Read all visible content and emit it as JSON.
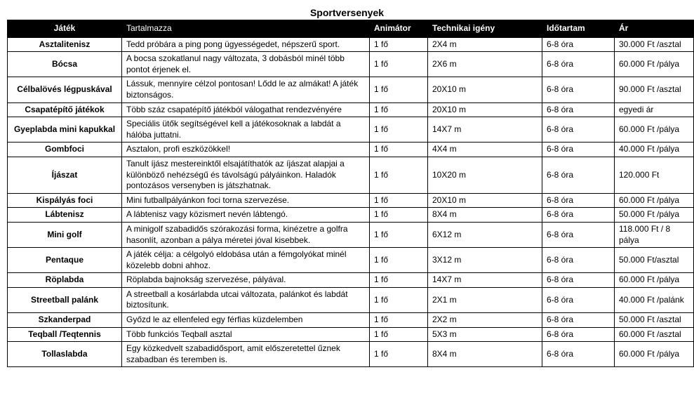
{
  "title": "Sportversenyek",
  "columns": [
    "Játék",
    "Tartalmazza",
    "Animátor",
    "Technikai igény",
    "Időtartam",
    "Ár"
  ],
  "rows": [
    {
      "game": "Asztalitenisz",
      "desc": "Tedd próbára a ping pong ügyességedet, népszerű sport.",
      "anim": "1 fő",
      "tech": "2X4 m",
      "dur": "6-8 óra",
      "price": "30.000 Ft /asztal"
    },
    {
      "game": "Bócsa",
      "desc": "A bocsa szokatlanul nagy változata,  3 dobásból minél több pontot érjenek el.",
      "anim": "1 fő",
      "tech": "2X6 m",
      "dur": "6-8 óra",
      "price": "60.000 Ft /pálya"
    },
    {
      "game": "Célbalövés légpuskával",
      "desc": "Lássuk, mennyire célzol pontosan! Lődd le az almákat!  A játék biztonságos.",
      "anim": "1 fő",
      "tech": "20X10 m",
      "dur": "6-8 óra",
      "price": "90.000 Ft /asztal"
    },
    {
      "game": "Csapatépítő játékok",
      "desc": "Több száz csapatépítő játékból válogathat rendezvényére",
      "anim": "1 fő",
      "tech": "20X10 m",
      "dur": "6-8 óra",
      "price": "egyedi ár"
    },
    {
      "game": "Gyeplabda mini kapukkal",
      "desc": "Speciális ütők segítségével kell a játékosoknak a labdát a hálóba juttatni.",
      "anim": "1 fő",
      "tech": "14X7 m",
      "dur": "6-8 óra",
      "price": "60.000 Ft /pálya"
    },
    {
      "game": "Gombfoci",
      "desc": "Asztalon, profi eszközökkel!",
      "anim": "1 fő",
      "tech": "4X4 m",
      "dur": "6-8 óra",
      "price": "40.000 Ft /pálya"
    },
    {
      "game": "Íjászat",
      "desc": "Tanult íjász mestereinktől elsajátíthatók az íjászat alapjai a különböző nehézségű és távolságú pályáinkon. Haladók pontozásos versenyben is játszhatnak.",
      "anim": "1 fő",
      "tech": "10X20 m",
      "dur": "6-8 óra",
      "price": "120.000 Ft"
    },
    {
      "game": "Kispályás foci",
      "desc": "Mini futballpályánkon foci torna szervezése.",
      "anim": "1 fő",
      "tech": "20X10 m",
      "dur": "6-8 óra",
      "price": "60.000 Ft /pálya"
    },
    {
      "game": "Lábtenisz",
      "desc": "A lábtenisz vagy közismert nevén lábtengó.",
      "anim": "1 fő",
      "tech": "8X4 m",
      "dur": "6-8 óra",
      "price": "50.000 Ft /pálya"
    },
    {
      "game": "Mini golf",
      "desc": "A minigolf szabadidős szórakozási forma, kinézetre a golfra hasonlít, azonban a pálya méretei jóval kisebbek.",
      "anim": "1 fő",
      "tech": "6X12 m",
      "dur": "6-8 óra",
      "price": "118.000 Ft /  8 pálya"
    },
    {
      "game": "Pentaque",
      "desc": "A játék célja: a célgolyó eldobása után a fémgolyókat minél közelebb dobni ahhoz.",
      "anim": "1 fő",
      "tech": "3X12 m",
      "dur": "6-8 óra",
      "price": "50.000 Ft/asztal"
    },
    {
      "game": "Röplabda",
      "desc": "Röplabda bajnokság szervezése, pályával.",
      "anim": "1 fő",
      "tech": "14X7 m",
      "dur": "6-8 óra",
      "price": "60.000 Ft /pálya"
    },
    {
      "game": "Streetball palánk",
      "desc": "A streetball a kosárlabda utcai változata, palánkot és labdát biztosítunk.",
      "anim": "1 fő",
      "tech": "2X1 m",
      "dur": "6-8 óra",
      "price": "40.000 Ft /palánk"
    },
    {
      "game": "Szkanderpad",
      "desc": "Győzd le az ellenfeled egy férfias küzdelemben",
      "anim": "1 fő",
      "tech": "2X2 m",
      "dur": "6-8 óra",
      "price": "50.000 Ft /asztal"
    },
    {
      "game": "Teqball /Teqtennis",
      "desc": "Több funkciós Teqball asztal",
      "anim": "1 fő",
      "tech": "5X3 m",
      "dur": "6-8 óra",
      "price": "60.000 Ft /asztal"
    },
    {
      "game": "Tollaslabda",
      "desc": "Egy közkedvelt szabadidősport, amit előszeretettel űznek szabadban és teremben is.",
      "anim": "1 fő",
      "tech": "8X4 m",
      "dur": "6-8 óra",
      "price": "60.000 Ft /pálya"
    }
  ]
}
